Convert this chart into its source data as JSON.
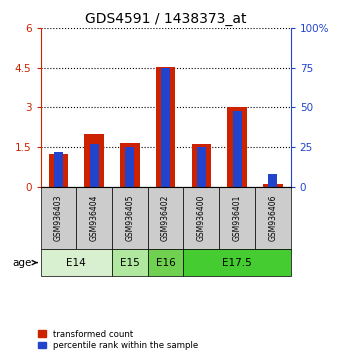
{
  "title": "GDS4591 / 1438373_at",
  "samples": [
    "GSM936403",
    "GSM936404",
    "GSM936405",
    "GSM936402",
    "GSM936400",
    "GSM936401",
    "GSM936406"
  ],
  "transformed_counts": [
    1.25,
    2.0,
    1.65,
    4.55,
    1.6,
    3.0,
    0.08
  ],
  "percentile_ranks": [
    22,
    27,
    25,
    75,
    25,
    48,
    8
  ],
  "age_groups": [
    {
      "label": "E14",
      "start": 0,
      "end": 2,
      "color": "#d8f0d0"
    },
    {
      "label": "E15",
      "start": 2,
      "end": 3,
      "color": "#b0e8a0"
    },
    {
      "label": "E16",
      "start": 3,
      "end": 4,
      "color": "#70d050"
    },
    {
      "label": "E17.5",
      "start": 4,
      "end": 7,
      "color": "#44cc30"
    }
  ],
  "left_ylim": [
    0,
    6
  ],
  "left_yticks": [
    0,
    1.5,
    3.0,
    4.5,
    6
  ],
  "right_ylim": [
    0,
    100
  ],
  "right_yticks": [
    0,
    25,
    50,
    75,
    100
  ],
  "bar_color_red": "#cc2200",
  "bar_color_blue": "#2244cc",
  "red_bar_width": 0.55,
  "blue_bar_width": 0.25,
  "bg_color": "#ffffff",
  "sample_box_color": "#cccccc",
  "legend_red_label": "transformed count",
  "legend_blue_label": "percentile rank within the sample",
  "age_label": "age",
  "title_fontsize": 10,
  "tick_fontsize": 7.5,
  "label_fontsize": 7
}
